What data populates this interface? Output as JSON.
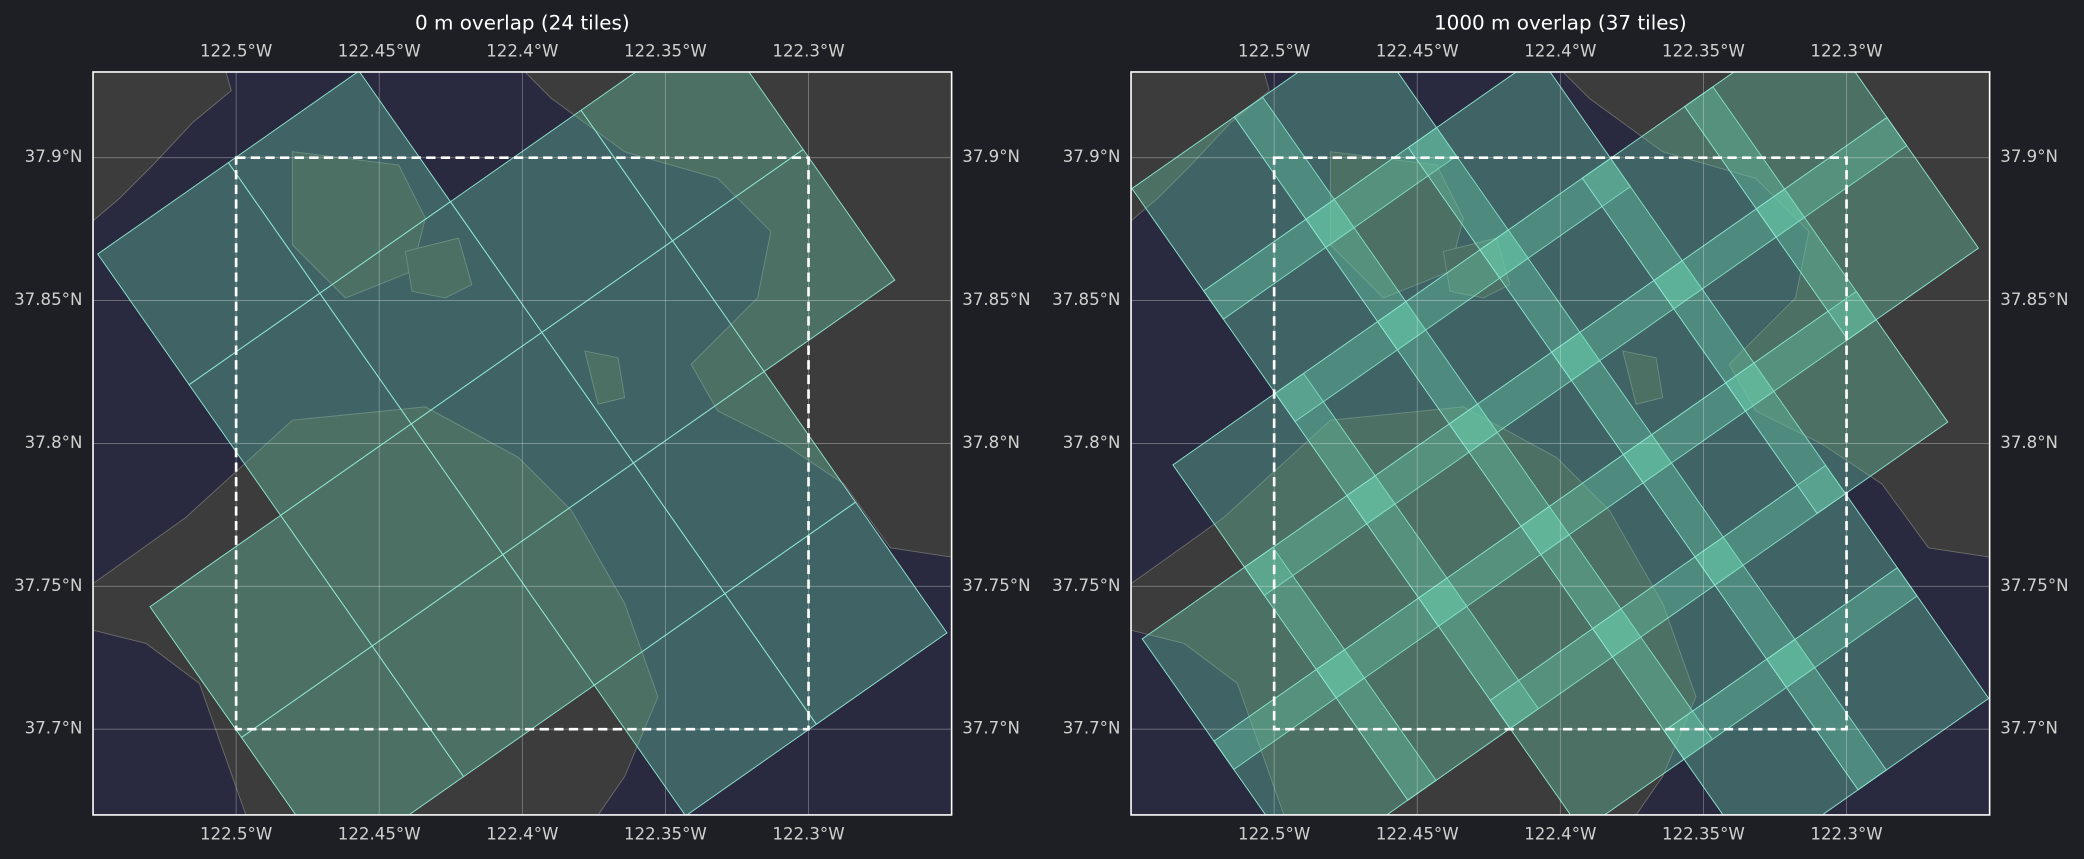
{
  "panels": [
    {
      "title": "0 m overlap (24 tiles)",
      "xlim": [
        -122.55,
        -122.25
      ],
      "ylim": [
        37.67,
        37.93
      ],
      "xticks": [
        {
          "value": -122.5,
          "label": "122.5°W"
        },
        {
          "value": -122.45,
          "label": "122.45°W"
        },
        {
          "value": -122.4,
          "label": "122.4°W"
        },
        {
          "value": -122.35,
          "label": "122.35°W"
        },
        {
          "value": -122.3,
          "label": "122.3°W"
        }
      ],
      "yticks": [
        {
          "value": 37.7,
          "label": "37.7°N"
        },
        {
          "value": 37.75,
          "label": "37.75°N"
        },
        {
          "value": 37.8,
          "label": "37.8°N"
        },
        {
          "value": 37.85,
          "label": "37.85°N"
        },
        {
          "value": 37.9,
          "label": "37.9°N"
        }
      ],
      "bbox": {
        "lon": [
          -122.5,
          -122.3
        ],
        "lat": [
          37.7,
          37.9
        ]
      }
    },
    {
      "title": "1000 m overlap (37 tiles)",
      "xlim": [
        -122.55,
        -122.25
      ],
      "ylim": [
        37.67,
        37.93
      ],
      "xticks": [
        {
          "value": -122.5,
          "label": "122.5°W"
        },
        {
          "value": -122.45,
          "label": "122.45°W"
        },
        {
          "value": -122.4,
          "label": "122.4°W"
        },
        {
          "value": -122.35,
          "label": "122.35°W"
        },
        {
          "value": -122.3,
          "label": "122.3°W"
        }
      ],
      "yticks": [
        {
          "value": 37.7,
          "label": "37.7°N"
        },
        {
          "value": 37.75,
          "label": "37.75°N"
        },
        {
          "value": 37.8,
          "label": "37.8°N"
        },
        {
          "value": 37.85,
          "label": "37.85°N"
        },
        {
          "value": 37.9,
          "label": "37.9°N"
        }
      ],
      "bbox": {
        "lon": [
          -122.5,
          -122.3
        ],
        "lat": [
          37.7,
          37.9
        ]
      }
    }
  ]
}
